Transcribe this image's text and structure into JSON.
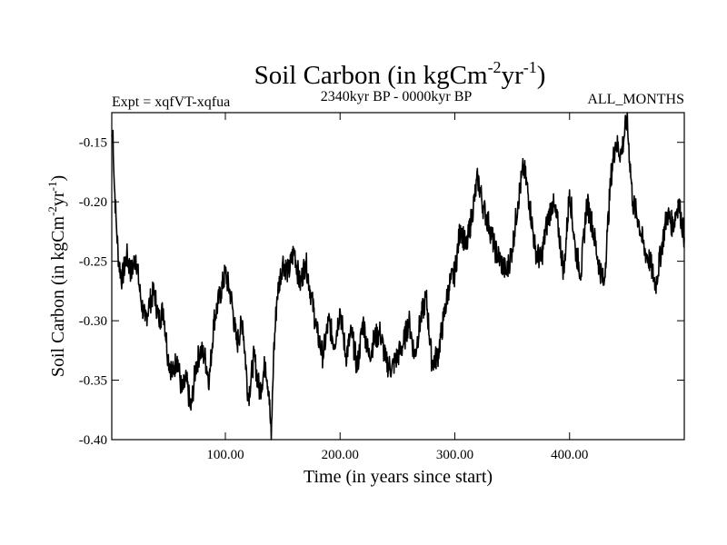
{
  "chart_data": {
    "type": "line",
    "title": {
      "main": "Soil Carbon (in kgCm",
      "sup1": "-2",
      "mid": "yr",
      "sup2": "-1",
      "end": ")"
    },
    "subtitle_left": "Expt = xqfVT-xqfua",
    "subtitle_center": "2340kyr BP - 0000kyr BP",
    "subtitle_right": "ALL_MONTHS",
    "xlabel": "Time (in years since start)",
    "ylabel": {
      "main": "Soil Carbon (in kgCm",
      "sup1": "-2",
      "mid": "yr",
      "sup2": "-1",
      "end": ")"
    },
    "xlim": [
      1,
      500
    ],
    "ylim": [
      -0.4,
      -0.125
    ],
    "x_ticks": [
      {
        "value": 100,
        "label": "100.00"
      },
      {
        "value": 200,
        "label": "200.00"
      },
      {
        "value": 300,
        "label": "300.00"
      },
      {
        "value": 400,
        "label": "400.00"
      }
    ],
    "y_ticks": [
      {
        "value": -0.15,
        "label": "-0.15"
      },
      {
        "value": -0.2,
        "label": "-0.20"
      },
      {
        "value": -0.25,
        "label": "-0.25"
      },
      {
        "value": -0.3,
        "label": "-0.30"
      },
      {
        "value": -0.35,
        "label": "-0.35"
      },
      {
        "value": -0.4,
        "label": "-0.40"
      }
    ],
    "series": [
      {
        "name": "Soil Carbon",
        "x": [
          1,
          2,
          3,
          5,
          7,
          10,
          14,
          18,
          22,
          26,
          30,
          34,
          38,
          42,
          46,
          50,
          54,
          58,
          62,
          66,
          70,
          74,
          78,
          82,
          86,
          90,
          95,
          100,
          105,
          110,
          115,
          120,
          125,
          130,
          135,
          138,
          140,
          142,
          145,
          150,
          155,
          160,
          165,
          170,
          175,
          180,
          185,
          190,
          195,
          200,
          205,
          210,
          215,
          220,
          225,
          230,
          235,
          240,
          245,
          250,
          255,
          260,
          265,
          270,
          275,
          280,
          285,
          290,
          295,
          300,
          305,
          310,
          315,
          320,
          325,
          330,
          335,
          340,
          345,
          350,
          355,
          360,
          365,
          370,
          375,
          380,
          385,
          390,
          395,
          400,
          405,
          410,
          415,
          420,
          425,
          430,
          433,
          436,
          440,
          445,
          450,
          455,
          460,
          465,
          470,
          475,
          480,
          485,
          490,
          495,
          500
        ],
        "y": [
          -0.145,
          -0.14,
          -0.18,
          -0.22,
          -0.25,
          -0.265,
          -0.245,
          -0.26,
          -0.245,
          -0.28,
          -0.3,
          -0.285,
          -0.275,
          -0.3,
          -0.29,
          -0.33,
          -0.345,
          -0.33,
          -0.36,
          -0.35,
          -0.375,
          -0.34,
          -0.325,
          -0.33,
          -0.35,
          -0.3,
          -0.28,
          -0.26,
          -0.28,
          -0.32,
          -0.3,
          -0.365,
          -0.33,
          -0.36,
          -0.335,
          -0.36,
          -0.4,
          -0.33,
          -0.28,
          -0.25,
          -0.26,
          -0.24,
          -0.27,
          -0.25,
          -0.28,
          -0.31,
          -0.33,
          -0.3,
          -0.32,
          -0.29,
          -0.33,
          -0.31,
          -0.34,
          -0.3,
          -0.33,
          -0.315,
          -0.31,
          -0.335,
          -0.34,
          -0.33,
          -0.32,
          -0.3,
          -0.33,
          -0.3,
          -0.28,
          -0.335,
          -0.33,
          -0.3,
          -0.27,
          -0.26,
          -0.22,
          -0.24,
          -0.21,
          -0.18,
          -0.205,
          -0.22,
          -0.24,
          -0.25,
          -0.26,
          -0.24,
          -0.2,
          -0.17,
          -0.2,
          -0.24,
          -0.25,
          -0.22,
          -0.2,
          -0.22,
          -0.26,
          -0.19,
          -0.24,
          -0.26,
          -0.2,
          -0.22,
          -0.25,
          -0.27,
          -0.225,
          -0.18,
          -0.15,
          -0.16,
          -0.13,
          -0.2,
          -0.215,
          -0.24,
          -0.25,
          -0.27,
          -0.24,
          -0.21,
          -0.22,
          -0.2,
          -0.23
        ]
      }
    ],
    "line_color": "#000000",
    "background_color": "#ffffff"
  }
}
